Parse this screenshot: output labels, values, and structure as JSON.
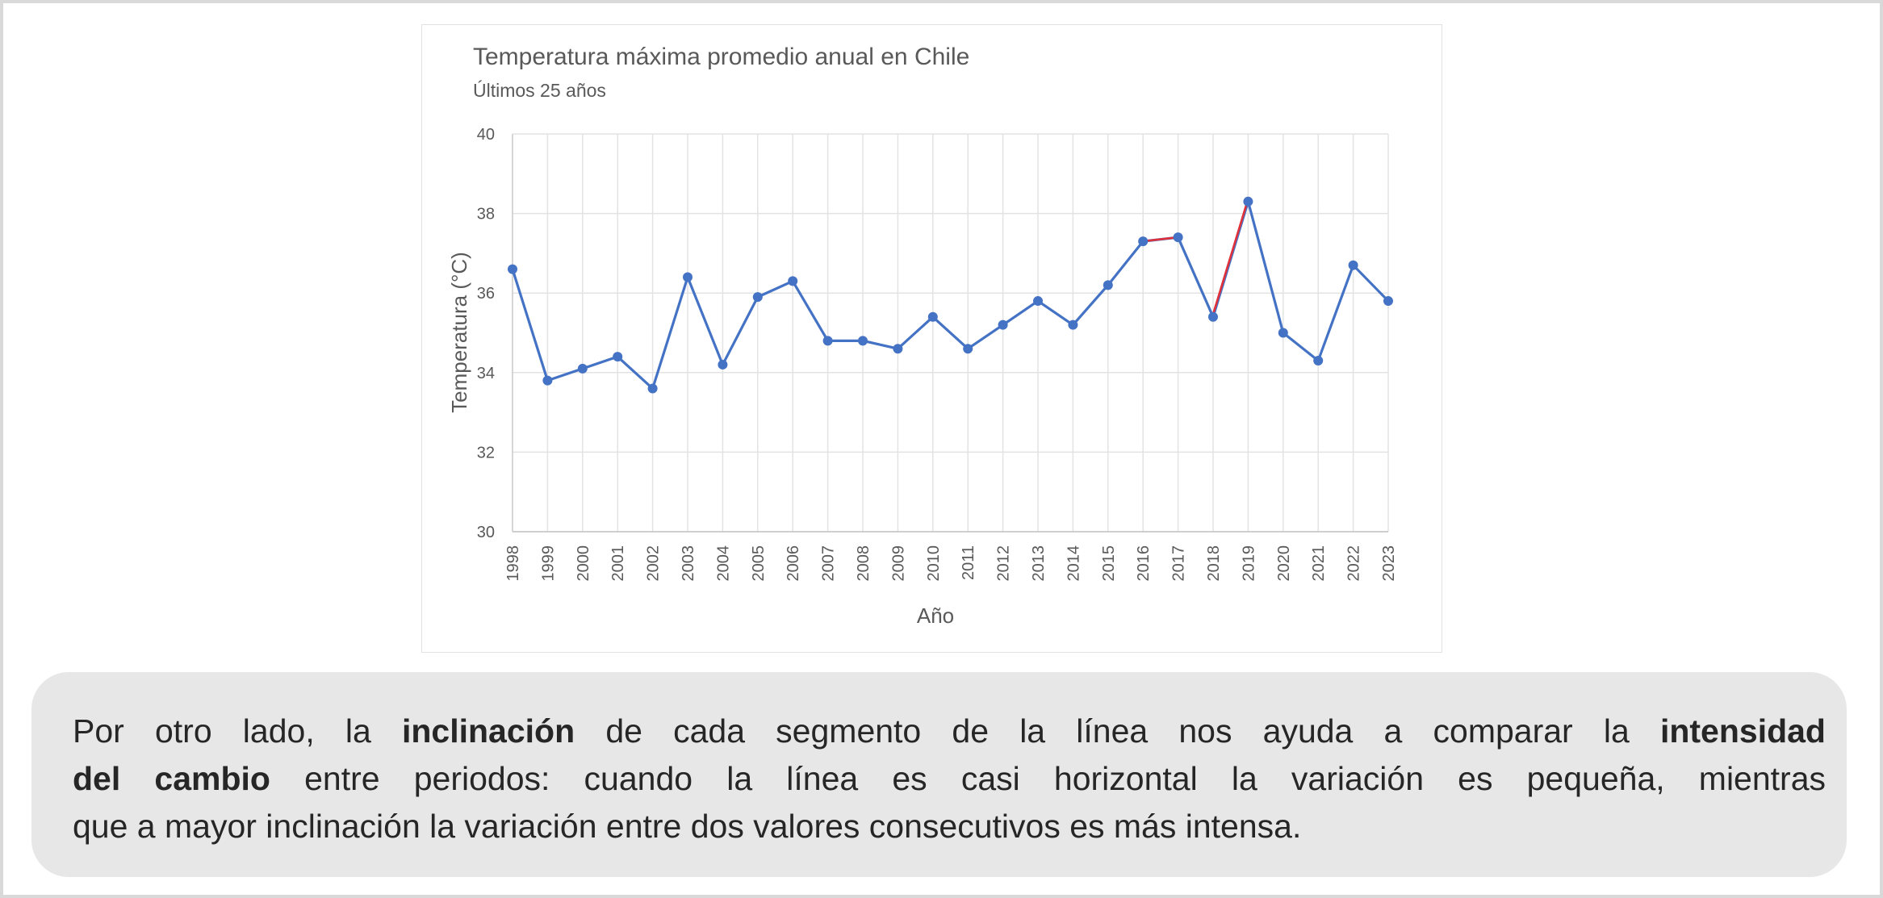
{
  "chart_data": {
    "type": "line",
    "title": "Temperatura máxima promedio anual en Chile",
    "subtitle": "Últimos 25 años",
    "xlabel": "Año",
    "ylabel": "Temperatura (°C)",
    "ylim": [
      30,
      40
    ],
    "yticks": [
      "30",
      "32",
      "34",
      "36",
      "38",
      "40"
    ],
    "grid": true,
    "legend": "none",
    "categories": [
      "1998",
      "1999",
      "2000",
      "2001",
      "2002",
      "2003",
      "2004",
      "2005",
      "2006",
      "2007",
      "2008",
      "2009",
      "2010",
      "2011",
      "2012",
      "2013",
      "2014",
      "2015",
      "2016",
      "2017",
      "2018",
      "2019",
      "2020",
      "2021",
      "2022",
      "2023"
    ],
    "series": [
      {
        "name": "Temperatura máxima promedio",
        "color": "#4472c4",
        "values": [
          36.6,
          33.8,
          34.1,
          34.4,
          33.6,
          36.4,
          34.2,
          35.9,
          36.3,
          34.8,
          34.8,
          34.6,
          35.4,
          34.6,
          35.2,
          35.8,
          35.2,
          36.2,
          37.3,
          37.4,
          35.4,
          38.3,
          35.0,
          34.3,
          36.7,
          35.8
        ]
      }
    ],
    "highlighted_segments": [
      {
        "from": "2016",
        "to": "2017",
        "color": "#e0303a"
      },
      {
        "from": "2018",
        "to": "2019",
        "color": "#e0303a"
      }
    ]
  },
  "caption": {
    "line1": {
      "pre": "Por otro lado, la ",
      "bold1": "inclinación",
      "mid": " de cada segmento de la línea nos ayuda a comparar la ",
      "bold2": "intensidad"
    },
    "line2": {
      "bold": "del cambio",
      "post": " entre periodos: cuando la línea es casi horizontal la variación es pequeña, mientras"
    },
    "line3": "que a mayor inclinación la variación entre dos valores consecutivos es más intensa."
  },
  "colors": {
    "line": "#4472c4",
    "highlight": "#e0303a",
    "grid": "#e3e3e3",
    "axis_text": "#595959",
    "caption_bg": "#e7e7e7"
  }
}
